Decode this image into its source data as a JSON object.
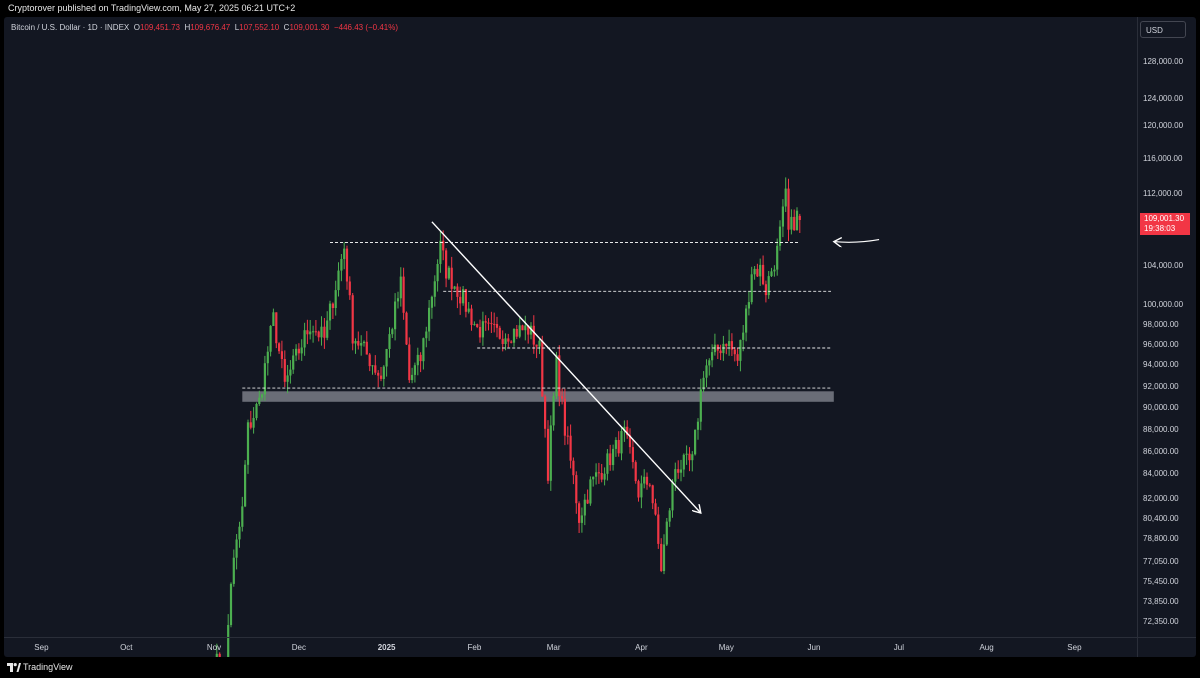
{
  "header": {
    "publish_info": "Cryptorover published on TradingView.com, May 27, 2025 06:21 UTC+2"
  },
  "legend": {
    "symbol": "Bitcoin / U.S. Dollar · 1D · INDEX",
    "open_label": "O",
    "open": "109,451.73",
    "high_label": "H",
    "high": "109,676.47",
    "low_label": "L",
    "low": "107,552.10",
    "close_label": "C",
    "close": "109,001.30",
    "change": "−446.43 (−0.41%)"
  },
  "currency": "USD",
  "price_tag": {
    "price": "109,001.30",
    "countdown": "19:38:03"
  },
  "footer": {
    "brand": "TradingView"
  },
  "colors": {
    "background": "#131722",
    "up": "#4caf50",
    "down": "#f23645",
    "text": "#d1d4dc",
    "annotation": "#ffffff",
    "zone": "#b2b5be"
  },
  "chart_data": {
    "type": "candlestick",
    "title": "",
    "y_ticks": [
      "128,000.00",
      "124,000.00",
      "120,000.00",
      "116,000.00",
      "112,000.00",
      "104,000.00",
      "100,000.00",
      "98,000.00",
      "96,000.00",
      "94,000.00",
      "92,000.00",
      "90,000.00",
      "88,000.00",
      "86,000.00",
      "84,000.00",
      "82,000.00",
      "80,400.00",
      "78,800.00",
      "77,050.00",
      "75,450.00",
      "73,850.00",
      "72,350.00"
    ],
    "x_ticks": [
      "Sep",
      "Oct",
      "Nov",
      "Dec",
      "2025",
      "Feb",
      "Mar",
      "Apr",
      "May",
      "Jun",
      "Jul",
      "Aug",
      "Sep"
    ],
    "x_tick_dates": [
      "2024-09-01",
      "2024-10-01",
      "2024-11-01",
      "2024-12-01",
      "2025-01-01",
      "2025-02-01",
      "2025-03-01",
      "2025-04-01",
      "2025-05-01",
      "2025-06-01",
      "2025-07-01",
      "2025-08-01",
      "2025-09-01"
    ],
    "current_price": 109001.3,
    "keypoints": [
      [
        "2024-11-01",
        69500
      ],
      [
        "2024-11-05",
        68500
      ],
      [
        "2024-11-07",
        75500
      ],
      [
        "2024-11-11",
        81000
      ],
      [
        "2024-11-13",
        88000
      ],
      [
        "2024-11-17",
        90500
      ],
      [
        "2024-11-22",
        98500
      ],
      [
        "2024-11-26",
        92000
      ],
      [
        "2024-12-05",
        98000
      ],
      [
        "2024-12-10",
        96500
      ],
      [
        "2024-12-17",
        106000
      ],
      [
        "2024-12-20",
        97000
      ],
      [
        "2024-12-26",
        94500
      ],
      [
        "2024-12-30",
        92800
      ],
      [
        "2025-01-06",
        102000
      ],
      [
        "2025-01-09",
        92500
      ],
      [
        "2025-01-13",
        94500
      ],
      [
        "2025-01-20",
        106000
      ],
      [
        "2025-01-22",
        103500
      ],
      [
        "2025-01-27",
        101000
      ],
      [
        "2025-02-02",
        97500
      ],
      [
        "2025-02-10",
        97000
      ],
      [
        "2025-02-20",
        97500
      ],
      [
        "2025-02-24",
        95500
      ],
      [
        "2025-02-27",
        84300
      ],
      [
        "2025-03-02",
        94000
      ],
      [
        "2025-03-05",
        88000
      ],
      [
        "2025-03-10",
        80500
      ],
      [
        "2025-03-14",
        83000
      ],
      [
        "2025-03-20",
        85000
      ],
      [
        "2025-03-26",
        87500
      ],
      [
        "2025-03-31",
        82500
      ],
      [
        "2025-04-04",
        83500
      ],
      [
        "2025-04-08",
        76500
      ],
      [
        "2025-04-13",
        84500
      ],
      [
        "2025-04-19",
        85000
      ],
      [
        "2025-04-23",
        93500
      ],
      [
        "2025-05-01",
        96500
      ],
      [
        "2025-05-05",
        94300
      ],
      [
        "2025-05-08",
        99000
      ],
      [
        "2025-05-10",
        103500
      ],
      [
        "2025-05-13",
        103500
      ],
      [
        "2025-05-15",
        101500
      ],
      [
        "2025-05-17",
        103500
      ],
      [
        "2025-05-19",
        105500
      ],
      [
        "2025-05-21",
        109500
      ],
      [
        "2025-05-22",
        111500
      ],
      [
        "2025-05-23",
        107500
      ],
      [
        "2025-05-25",
        109000
      ],
      [
        "2025-05-26",
        109400
      ],
      [
        "2025-05-27",
        109001.3
      ]
    ],
    "annotations": {
      "horizontal_levels": [
        {
          "style": "dashed",
          "price": 106500,
          "from": "2024-12-12",
          "to": "2025-05-27"
        },
        {
          "style": "dashed",
          "price": 101300,
          "from": "2025-01-21",
          "to": "2025-06-07"
        },
        {
          "style": "dashed",
          "price": 95600,
          "from": "2025-02-02",
          "to": "2025-06-07"
        },
        {
          "style": "dashed",
          "price": 91800,
          "from": "2024-11-11",
          "to": "2025-06-07"
        }
      ],
      "zone": {
        "price_top": 91500,
        "price_bottom": 90500,
        "from": "2024-11-11",
        "to": "2025-06-08"
      },
      "trend_arrow": {
        "from": [
          "2025-01-17",
          108800
        ],
        "to": [
          "2025-04-22",
          80800
        ]
      },
      "pointer_arrow": {
        "from": [
          "2025-06-24",
          106600
        ],
        "to": [
          "2025-06-08",
          106600
        ]
      }
    }
  }
}
